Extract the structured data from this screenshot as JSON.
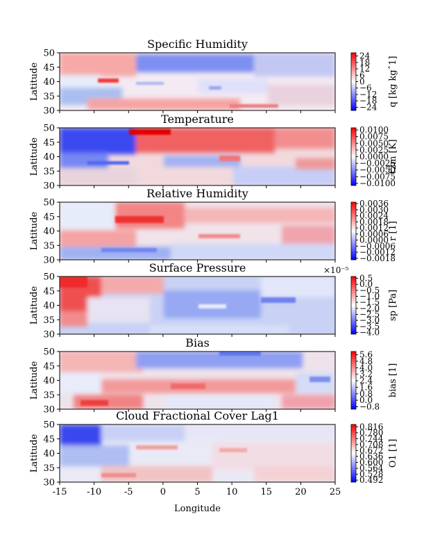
{
  "chart_data": {
    "type": "heatmap",
    "shared_x": {
      "xlabel": "Longitude",
      "xlim": [
        -15,
        25
      ],
      "ticks": [
        -15,
        -10,
        -5,
        0,
        5,
        10,
        15,
        20,
        25
      ],
      "tick_labels": [
        "-15",
        "-10",
        "-5",
        "0",
        "5",
        "10",
        "15",
        "20",
        "25"
      ]
    },
    "colormap": "bwr",
    "colors": {
      "low": "#0000ff",
      "mid": "#ffffff",
      "high": "#ff0000"
    },
    "panels": [
      {
        "title": "Specific Humidity",
        "ylabel": "Latitude",
        "ylim": [
          30,
          50
        ],
        "yticks": [
          "30",
          "35",
          "40",
          "45",
          "50"
        ],
        "colorbar_label": "q [kg kgˆ1]",
        "colorbar_ticks": [
          "24",
          "18",
          "12",
          "6",
          "0",
          "−6",
          "−12",
          "−18",
          "−24"
        ],
        "colorbar_range": [
          -27,
          27
        ],
        "offset_text": ""
      },
      {
        "title": "Temperature",
        "ylabel": "Latitude",
        "ylim": [
          30,
          50
        ],
        "yticks": [
          "30",
          "35",
          "40",
          "45",
          "50"
        ],
        "colorbar_label": "t2m [K]",
        "colorbar_ticks": [
          "0.0100",
          "0.0075",
          "0.0050",
          "0.0025",
          "0.0000",
          "−0.0025",
          "−0.0050",
          "−0.0075",
          "−0.0100"
        ],
        "colorbar_range": [
          -0.0108,
          0.0108
        ],
        "offset_text": ""
      },
      {
        "title": "Relative Humidity",
        "ylabel": "Latitude",
        "ylim": [
          30,
          50
        ],
        "yticks": [
          "30",
          "35",
          "40",
          "45",
          "50"
        ],
        "colorbar_label": "r [1]",
        "colorbar_ticks": [
          "0.0036",
          "0.0030",
          "0.0024",
          "0.0018",
          "0.0012",
          "0.0006",
          "0.0000",
          "−0.0006",
          "−0.0012",
          "−0.0018"
        ],
        "colorbar_range": [
          -0.00195,
          0.00375
        ],
        "offset_text": ""
      },
      {
        "title": "Surface Pressure",
        "ylabel": "Latitude",
        "ylim": [
          30,
          50
        ],
        "yticks": [
          "30",
          "35",
          "40",
          "45",
          "50"
        ],
        "colorbar_label": "sp [Pa]",
        "colorbar_ticks": [
          "0.5",
          "0.0",
          "−0.5",
          "−1.0",
          "−1.5",
          "−2.0",
          "−2.5",
          "−3.0",
          "−3.5",
          "−4.0"
        ],
        "colorbar_range": [
          -4.15,
          0.65
        ],
        "offset_text": "×10⁻⁵"
      },
      {
        "title": "Bias",
        "ylabel": "Latitude",
        "ylim": [
          30,
          50
        ],
        "yticks": [
          "30",
          "35",
          "40",
          "45",
          "50"
        ],
        "colorbar_label": "bias [1]",
        "colorbar_ticks": [
          "5.6",
          "4.8",
          "4.0",
          "3.2",
          "2.4",
          "1.6",
          "0.8",
          "0.0",
          "−0.8"
        ],
        "colorbar_range": [
          -1.1,
          6.0
        ],
        "offset_text": ""
      },
      {
        "title": "Cloud Fractional Cover Lag1",
        "ylabel": "Latitude",
        "ylim": [
          30,
          50
        ],
        "yticks": [
          "30",
          "35",
          "40",
          "45",
          "50"
        ],
        "colorbar_label": "O1 [1]",
        "colorbar_ticks": [
          "0.816",
          "0.780",
          "0.744",
          "0.708",
          "0.672",
          "0.636",
          "0.600",
          "0.564",
          "0.528",
          "0.492"
        ],
        "colorbar_range": [
          0.48,
          0.83
        ],
        "offset_text": ""
      }
    ]
  }
}
